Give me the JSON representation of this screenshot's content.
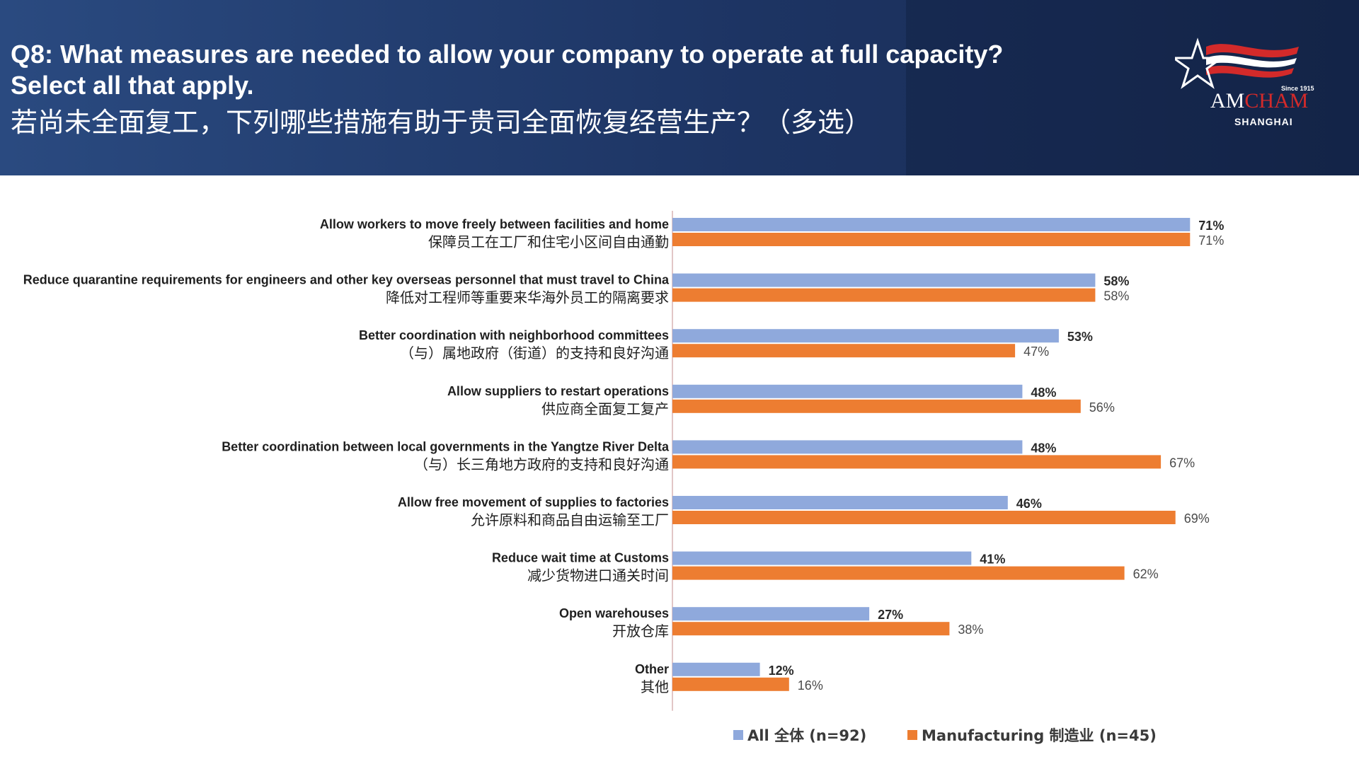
{
  "header": {
    "title_line1": "Q8: What measures are needed to allow your company to operate at full capacity?",
    "title_line2": "Select all that apply.",
    "title_line3": "若尚未全面复工，下列哪些措施有助于贵司全面恢复经营生产？（多选）"
  },
  "logo": {
    "since": "Since 1915",
    "name_part1": "AM",
    "name_part2": "CHAM",
    "city": "SHANGHAI"
  },
  "colors": {
    "all": "#8fa9dc",
    "manufacturing": "#ed7d31",
    "label_text": "#1f1f1f"
  },
  "chart_data": {
    "type": "bar",
    "orientation": "horizontal",
    "categories": [
      {
        "en": "Allow workers to move freely between facilities and home",
        "zh": "保障员工在工厂和住宅小区间自由通勤"
      },
      {
        "en": "Reduce quarantine requirements for engineers and other key overseas personnel that must travel to China",
        "zh": "降低对工程师等重要来华海外员工的隔离要求"
      },
      {
        "en": "Better coordination with neighborhood committees",
        "zh": "（与）属地政府（街道）的支持和良好沟通"
      },
      {
        "en": "Allow suppliers to restart operations",
        "zh": "供应商全面复工复产"
      },
      {
        "en": "Better coordination between local governments in the Yangtze River Delta",
        "zh": "（与）长三角地方政府的支持和良好沟通"
      },
      {
        "en": "Allow free movement of supplies to factories",
        "zh": "允许原料和商品自由运输至工厂"
      },
      {
        "en": "Reduce wait time at Customs",
        "zh": "减少货物进口通关时间"
      },
      {
        "en": "Open warehouses",
        "zh": "开放仓库"
      },
      {
        "en": "Other",
        "zh": "其他"
      }
    ],
    "series": [
      {
        "name": "All 全体 (n=92)",
        "values": [
          71,
          58,
          53,
          48,
          48,
          46,
          41,
          27,
          12
        ]
      },
      {
        "name": "Manufacturing 制造业 (n=45)",
        "values": [
          71,
          58,
          47,
          56,
          67,
          69,
          62,
          38,
          16
        ]
      }
    ],
    "value_suffix": "%",
    "xlim": [
      0,
      100
    ],
    "legend_position": "bottom"
  }
}
